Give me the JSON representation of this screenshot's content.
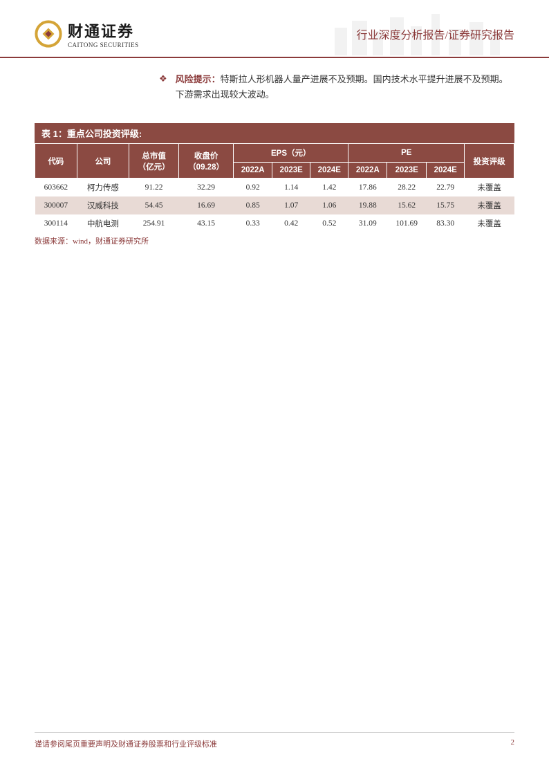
{
  "header": {
    "logo_cn": "财通证券",
    "logo_en": "CAITONG SECURITIES",
    "title": "行业深度分析报告/证券研究报告"
  },
  "risk": {
    "label": "风险提示：",
    "text": "特斯拉人形机器人量产进展不及预期。国内技术水平提升进展不及预期。下游需求出现较大波动。"
  },
  "table": {
    "title": "表 1：重点公司投资评级:",
    "headers": {
      "code": "代码",
      "company": "公司",
      "market_cap": "总市值",
      "market_cap_unit": "（亿元）",
      "close_price": "收盘价",
      "close_date": "（09.28）",
      "eps_group": "EPS（元）",
      "pe_group": "PE",
      "rating": "投资评级",
      "y2022a": "2022A",
      "y2023e": "2023E",
      "y2024e": "2024E"
    },
    "rows": [
      {
        "code": "603662",
        "company": "柯力传感",
        "mcap": "91.22",
        "close": "32.29",
        "eps22": "0.92",
        "eps23": "1.14",
        "eps24": "1.42",
        "pe22": "17.86",
        "pe23": "28.22",
        "pe24": "22.79",
        "rating": "未覆盖"
      },
      {
        "code": "300007",
        "company": "汉威科技",
        "mcap": "54.45",
        "close": "16.69",
        "eps22": "0.85",
        "eps23": "1.07",
        "eps24": "1.06",
        "pe22": "19.88",
        "pe23": "15.62",
        "pe24": "15.75",
        "rating": "未覆盖"
      },
      {
        "code": "300114",
        "company": "中航电测",
        "mcap": "254.91",
        "close": "43.15",
        "eps22": "0.33",
        "eps23": "0.42",
        "eps24": "0.52",
        "pe22": "31.09",
        "pe23": "101.69",
        "pe24": "83.30",
        "rating": "未覆盖"
      }
    ],
    "source": "数据来源：wind，财通证券研究所"
  },
  "footer": {
    "disclaimer": "谨请参阅尾页重要声明及财通证券股票和行业评级标准",
    "page": "2"
  },
  "colors": {
    "brand": "#8b3a3a",
    "table_header": "#8b4a42",
    "row_alt": "#e8dad5",
    "logo_gold": "#d4a437"
  }
}
